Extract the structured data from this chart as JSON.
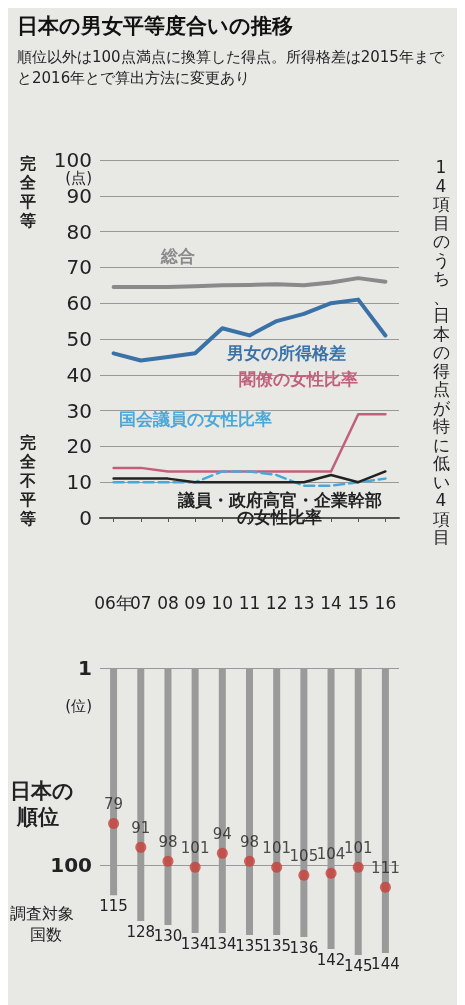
{
  "chart_data": [
    {
      "type": "line",
      "title": "日本の男女平等度合いの推移",
      "subtitle": "順位以外は100点満点に換算した得点。所得格差は2015年までと2016年とで算出方法に変更あり",
      "ylabel": "(点)",
      "categories": [
        "06年",
        "07",
        "08",
        "09",
        "10",
        "11",
        "12",
        "13",
        "14",
        "15",
        "16"
      ],
      "series": [
        {
          "name": "総合",
          "color": "#8a8a8a",
          "values": [
            64.5,
            64.5,
            64.5,
            64.7,
            65,
            65.1,
            65.3,
            65,
            65.8,
            67,
            66
          ]
        },
        {
          "name": "男女の所得格差",
          "color": "#3a72a8",
          "values": [
            46,
            44,
            45,
            46,
            53,
            51,
            55,
            57,
            60,
            61,
            51
          ]
        },
        {
          "name": "閣僚の女性比率",
          "color": "#c0607a",
          "values": [
            14,
            14,
            13,
            13,
            13,
            13,
            13,
            13,
            13,
            29,
            29
          ]
        },
        {
          "name": "国会議員の女性比率",
          "color": "#4aa8d8",
          "line_style": "dashed",
          "values": [
            10,
            10,
            10,
            10,
            13,
            13,
            12,
            9,
            9,
            10,
            11
          ]
        },
        {
          "name": "議員・政府高官・企業幹部の女性比率",
          "color": "#222222",
          "values": [
            11,
            11,
            11,
            10,
            10,
            10,
            10,
            10,
            12,
            10,
            13
          ]
        }
      ],
      "ylim": [
        0,
        100
      ],
      "yticks": [
        0,
        10,
        20,
        30,
        40,
        50,
        60,
        70,
        80,
        90,
        100
      ],
      "grid": "y",
      "line_style": "solid",
      "marker": "none",
      "annotations": [
        "完全平等",
        "完全不平等",
        "14項目のうち、日本の得点が特に低い4項目"
      ]
    },
    {
      "type": "bar",
      "ylabel": "(位)",
      "categories": [
        null,
        null,
        null,
        null,
        null,
        null,
        null,
        null,
        null,
        null,
        null
      ],
      "tick_labels": "y",
      "series": [
        {
          "name": "調査対象国数",
          "color": "#9a9a9a",
          "values": [
            115,
            128,
            130,
            134,
            134,
            135,
            135,
            136,
            142,
            145,
            144
          ]
        },
        {
          "name": "日本の順位",
          "type": "scatter",
          "color": "#c8403a",
          "values": [
            79,
            91,
            98,
            101,
            94,
            98,
            101,
            105,
            104,
            101,
            111
          ]
        }
      ],
      "ylim": [
        145,
        1
      ],
      "yticks": [
        1,
        100
      ],
      "grid": "y",
      "data_labels": true,
      "marker": "circle"
    }
  ]
}
